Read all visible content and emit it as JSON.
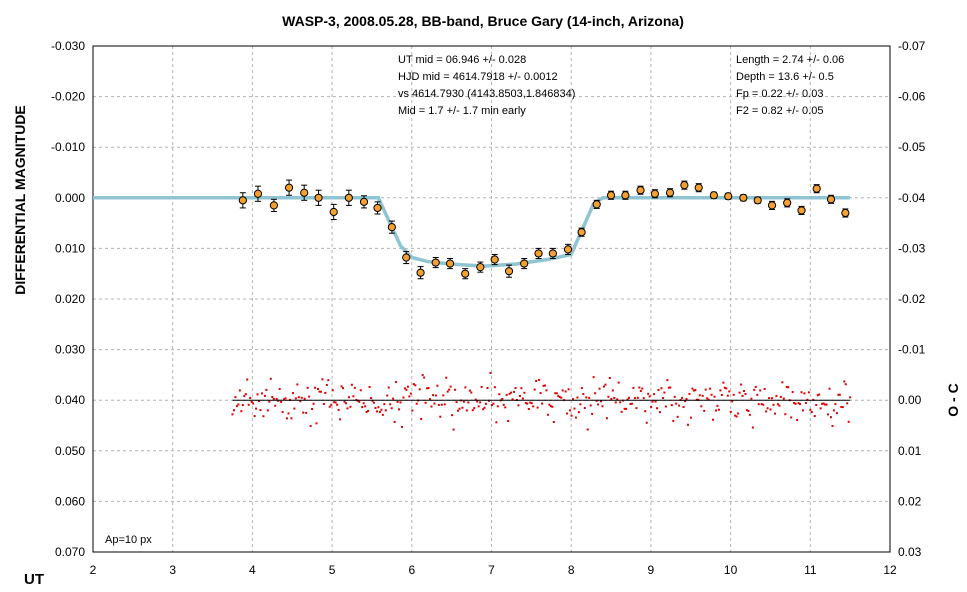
{
  "chart_data": {
    "type": "scatter",
    "title": "WASP-3, 2008.05.28, BB-band, Bruce Gary (14-inch, Arizona)",
    "xlabel": "UT",
    "ylabel_left": "DIFFERENTIAL MAGNITUDE",
    "ylabel_right": "O - C",
    "xlim": [
      2,
      12
    ],
    "ylim_left": [
      -0.03,
      0.07
    ],
    "ylim_right": [
      -0.07,
      0.03
    ],
    "left_axis_inverted": true,
    "grid": true,
    "x_ticks": [
      "2",
      "3",
      "4",
      "5",
      "6",
      "7",
      "8",
      "9",
      "10",
      "11",
      "12"
    ],
    "y_ticks_left": [
      "-0.030",
      "-0.020",
      "-0.010",
      "0.000",
      "0.010",
      "0.020",
      "0.030",
      "0.040",
      "0.050",
      "0.060",
      "0.070"
    ],
    "y_ticks_right": [
      "-0.07",
      "-0.06",
      "-0.05",
      "-0.04",
      "-0.03",
      "-0.02",
      "-0.01",
      "0.00",
      "0.01",
      "0.02",
      "0.03"
    ],
    "annotations": {
      "center": [
        "UT mid = 06.946 +/- 0.028",
        "HJD mid = 4614.7918 +/- 0.0012",
        "vs 4614.7930 (4143.8503,1.846834)",
        "Mid = 1.7 +/- 1.7 min early"
      ],
      "right": [
        "Length = 2.74 +/- 0.06",
        "Depth = 13.6 +/- 0.5",
        "Fp = 0.22 +/- 0.03",
        "F2 = 0.82 +/- 0.05"
      ],
      "corner": "Ap=10 px"
    },
    "colors": {
      "points": "#f5a030",
      "model": "#8fc4d2",
      "residuals": "#e00000",
      "grid": "#b4b4b4"
    },
    "binned_points": {
      "x": [
        3.88,
        4.07,
        4.27,
        4.46,
        4.65,
        4.83,
        5.02,
        5.21,
        5.4,
        5.57,
        5.75,
        5.93,
        6.11,
        6.3,
        6.48,
        6.67,
        6.86,
        7.04,
        7.22,
        7.41,
        7.59,
        7.77,
        7.96,
        8.13,
        8.32,
        8.5,
        8.68,
        8.87,
        9.05,
        9.24,
        9.42,
        9.6,
        9.79,
        9.97,
        10.16,
        10.34,
        10.52,
        10.71,
        10.89,
        11.08,
        11.26,
        11.44
      ],
      "y": [
        0.0005,
        -0.0008,
        0.0015,
        -0.002,
        -0.001,
        0.0,
        0.0028,
        0.0,
        0.0008,
        0.002,
        0.0058,
        0.0118,
        0.0148,
        0.0128,
        0.013,
        0.015,
        0.0137,
        0.0122,
        0.0145,
        0.013,
        0.011,
        0.011,
        0.0102,
        0.0068,
        0.0013,
        -0.0005,
        -0.0005,
        -0.0015,
        -0.0008,
        -0.001,
        -0.0025,
        -0.002,
        -0.0005,
        -0.0003,
        0.0,
        0.0005,
        0.0015,
        0.001,
        0.0025,
        -0.0018,
        0.0003,
        0.003
      ],
      "err": [
        0.0015,
        0.0015,
        0.0012,
        0.0015,
        0.0015,
        0.0015,
        0.0015,
        0.0015,
        0.0012,
        0.0012,
        0.0012,
        0.0012,
        0.0012,
        0.001,
        0.001,
        0.001,
        0.001,
        0.001,
        0.0012,
        0.001,
        0.001,
        0.001,
        0.001,
        0.0008,
        0.0008,
        0.0008,
        0.0008,
        0.0008,
        0.0008,
        0.0008,
        0.0008,
        0.0008,
        0.0006,
        0.0006,
        0.0006,
        0.0006,
        0.0008,
        0.0008,
        0.0008,
        0.0008,
        0.0008,
        0.0008
      ]
    },
    "model_curve": {
      "x": [
        2.0,
        5.58,
        5.72,
        5.86,
        6.0,
        6.2,
        6.5,
        6.9,
        7.3,
        7.7,
        8.0,
        8.14,
        8.28,
        8.4,
        11.5
      ],
      "y": [
        0.0,
        0.0,
        0.0048,
        0.0095,
        0.0118,
        0.0126,
        0.0131,
        0.0135,
        0.0131,
        0.0122,
        0.0112,
        0.0062,
        0.0012,
        0.0,
        0.0
      ]
    },
    "residuals": {
      "x_start": 3.75,
      "x_end": 11.5,
      "count": 420,
      "scatter_sigma_right_axis": 0.0035
    },
    "zero_line_right_axis": 0.0
  }
}
